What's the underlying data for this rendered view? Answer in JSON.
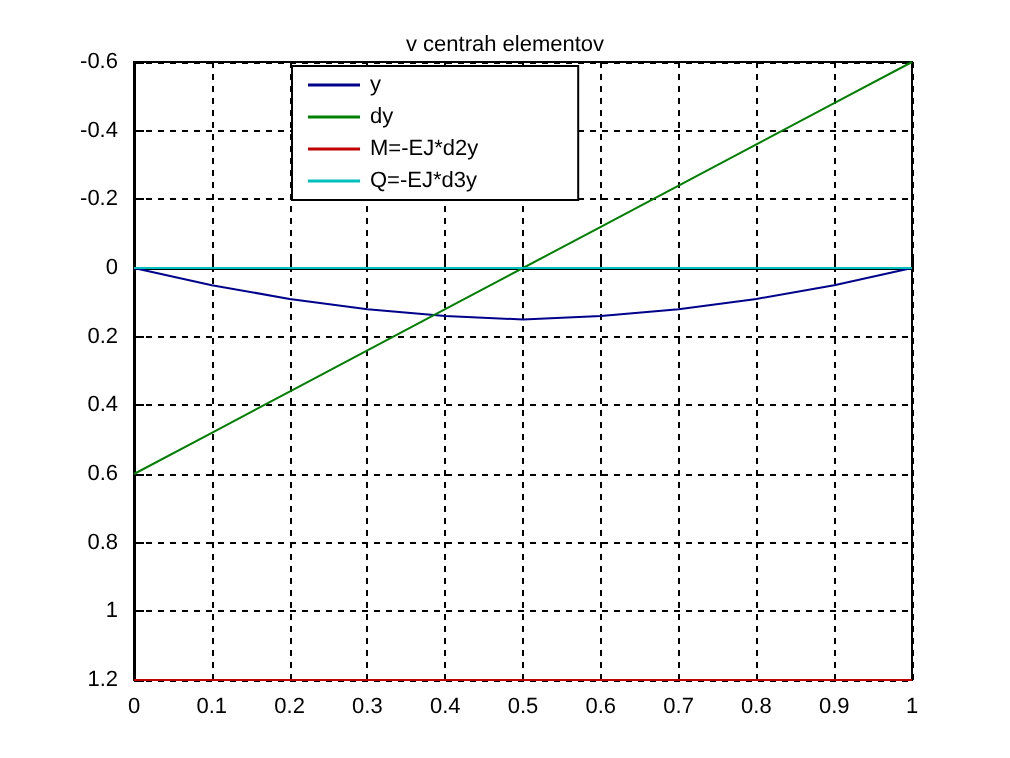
{
  "chart_data": {
    "type": "line",
    "title": "v centrah elementov",
    "x": [
      0,
      0.1,
      0.2,
      0.3,
      0.4,
      0.5,
      0.6,
      0.7,
      0.8,
      0.9,
      1
    ],
    "series": [
      {
        "name": "y",
        "color": "#00008b",
        "values": [
          0,
          0.05,
          0.09,
          0.12,
          0.14,
          0.15,
          0.14,
          0.12,
          0.09,
          0.05,
          0
        ]
      },
      {
        "name": "dy",
        "color": "#008000",
        "values": [
          0.6,
          0.48,
          0.36,
          0.24,
          0.12,
          0,
          -0.12,
          -0.24,
          -0.36,
          -0.48,
          -0.6
        ]
      },
      {
        "name": "M=-EJ*d2y",
        "color": "#c00000",
        "values": [
          1.2,
          1.2,
          1.2,
          1.2,
          1.2,
          1.2,
          1.2,
          1.2,
          1.2,
          1.2,
          1.2
        ]
      },
      {
        "name": "Q=-EJ*d3y",
        "color": "#00bfbf",
        "values": [
          0,
          0,
          0,
          0,
          0,
          0,
          0,
          0,
          0,
          0,
          0
        ]
      }
    ],
    "xlim": [
      0,
      1
    ],
    "xticks": [
      0,
      0.1,
      0.2,
      0.3,
      0.4,
      0.5,
      0.6,
      0.7,
      0.8,
      0.9,
      1
    ],
    "ylim": [
      1.2,
      -0.6
    ],
    "yticks": [
      -0.6,
      -0.4,
      -0.2,
      0,
      0.2,
      0.4,
      0.6,
      0.8,
      1,
      1.2
    ],
    "grid": true,
    "legend": "top left",
    "marker": "none",
    "line_style": "solid"
  }
}
